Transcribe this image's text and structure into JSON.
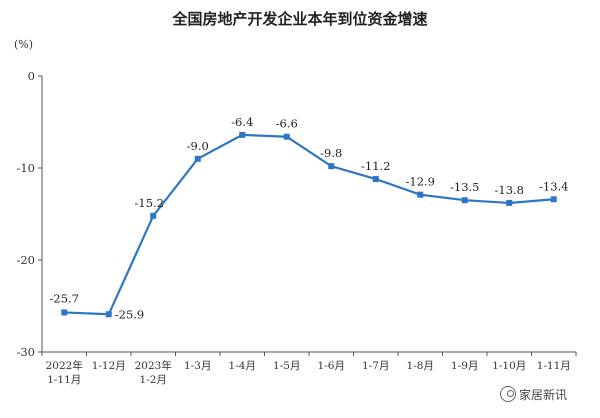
{
  "chart_data": {
    "type": "line",
    "title": "全国房地产开发企业本年到位资金增速",
    "unit": "(%)",
    "categories": [
      [
        "2022年",
        "1-11月"
      ],
      [
        "1-12月"
      ],
      [
        "2023年",
        "1-2月"
      ],
      [
        "1-3月"
      ],
      [
        "1-4月"
      ],
      [
        "1-5月"
      ],
      [
        "1-6月"
      ],
      [
        "1-7月"
      ],
      [
        "1-8月"
      ],
      [
        "1-9月"
      ],
      [
        "1-10月"
      ],
      [
        "1-11月"
      ]
    ],
    "values": [
      -25.7,
      -25.9,
      -15.2,
      -9.0,
      -6.4,
      -6.6,
      -9.8,
      -11.2,
      -12.9,
      -13.5,
      -13.8,
      -13.4
    ],
    "value_labels": [
      "-25.7",
      "-25.9",
      "-15.2",
      "-9.0",
      "-6.4",
      "-6.6",
      "-9.8",
      "-11.2",
      "-12.9",
      "-13.5",
      "-13.8",
      "-13.4"
    ],
    "yticks": [
      0,
      -10,
      -20,
      -30
    ],
    "ylim": [
      -30,
      0
    ],
    "grid": false,
    "line_color": "#2e75c4"
  },
  "watermark": "家居新讯",
  "watermark_icon": "wechat-icon"
}
